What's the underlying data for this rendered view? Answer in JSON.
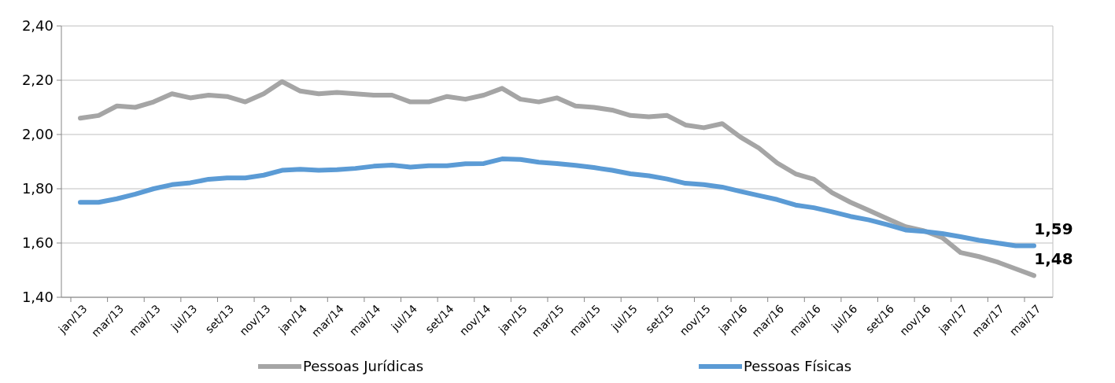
{
  "chart_data": {
    "type": "line",
    "categories": [
      "jan/13",
      null,
      "mar/13",
      null,
      "mai/13",
      null,
      "jul/13",
      null,
      "set/13",
      null,
      "nov/13",
      null,
      "jan/14",
      null,
      "mar/14",
      null,
      "mai/14",
      null,
      "jul/14",
      null,
      "set/14",
      null,
      "nov/14",
      null,
      "jan/15",
      null,
      "mar/15",
      null,
      "mai/15",
      null,
      "jul/15",
      null,
      "set/15",
      null,
      "nov/15",
      null,
      "jan/16",
      null,
      "mar/16",
      null,
      "mai/16",
      null,
      "jul/16",
      null,
      "set/16",
      null,
      "nov/16",
      null,
      "jan/17",
      null,
      "mar/17",
      null,
      "mai/17"
    ],
    "series": [
      {
        "name": "Pessoas Jurídicas",
        "color": "#a5a5a5",
        "values": [
          2.06,
          2.07,
          2.105,
          2.1,
          2.12,
          2.15,
          2.135,
          2.145,
          2.14,
          2.12,
          2.15,
          2.195,
          2.16,
          2.15,
          2.155,
          2.15,
          2.145,
          2.145,
          2.12,
          2.12,
          2.14,
          2.13,
          2.145,
          2.17,
          2.13,
          2.12,
          2.135,
          2.105,
          2.1,
          2.09,
          2.07,
          2.065,
          2.07,
          2.035,
          2.025,
          2.04,
          1.99,
          1.95,
          1.895,
          1.855,
          1.835,
          1.785,
          1.75,
          1.72,
          1.69,
          1.66,
          1.645,
          1.62,
          1.565,
          1.55,
          1.53,
          1.505,
          1.48
        ],
        "value_labels": [
          null,
          null,
          null,
          null,
          null,
          null,
          null,
          null,
          null,
          null,
          null,
          null,
          null,
          null,
          null,
          null,
          null,
          null,
          null,
          null,
          null,
          null,
          null,
          null,
          null,
          null,
          null,
          null,
          null,
          null,
          null,
          null,
          null,
          null,
          null,
          null,
          null,
          null,
          null,
          null,
          null,
          null,
          null,
          null,
          null,
          null,
          null,
          null,
          null,
          null,
          null,
          null,
          "1,48"
        ]
      },
      {
        "name": "Pessoas Físicas",
        "color": "#5b9bd5",
        "values": [
          1.75,
          1.75,
          1.763,
          1.78,
          1.8,
          1.815,
          1.822,
          1.835,
          1.84,
          1.84,
          1.85,
          1.868,
          1.872,
          1.868,
          1.87,
          1.875,
          1.883,
          1.887,
          1.88,
          1.885,
          1.885,
          1.892,
          1.893,
          1.91,
          1.908,
          1.898,
          1.893,
          1.886,
          1.878,
          1.868,
          1.855,
          1.848,
          1.836,
          1.82,
          1.815,
          1.806,
          1.79,
          1.775,
          1.76,
          1.74,
          1.73,
          1.715,
          1.698,
          1.685,
          1.668,
          1.648,
          1.643,
          1.635,
          1.623,
          1.61,
          1.6,
          1.59,
          1.59
        ],
        "value_labels": [
          null,
          null,
          null,
          null,
          null,
          null,
          null,
          null,
          null,
          null,
          null,
          null,
          null,
          null,
          null,
          null,
          null,
          null,
          null,
          null,
          null,
          null,
          null,
          null,
          null,
          null,
          null,
          null,
          null,
          null,
          null,
          null,
          null,
          null,
          null,
          null,
          null,
          null,
          null,
          null,
          null,
          null,
          null,
          null,
          null,
          null,
          null,
          null,
          null,
          null,
          null,
          null,
          "1,59"
        ]
      }
    ],
    "ylim": [
      1.4,
      2.4
    ],
    "yticks": [
      {
        "value": 1.4,
        "label": "1,40"
      },
      {
        "value": 1.6,
        "label": "1,60"
      },
      {
        "value": 1.8,
        "label": "1,80"
      },
      {
        "value": 2.0,
        "label": "2,00"
      },
      {
        "value": 2.2,
        "label": "2,20"
      },
      {
        "value": 2.4,
        "label": "2,40"
      }
    ],
    "grid": "y",
    "legend": "bottom",
    "marker": "none",
    "line_style": "solid"
  }
}
